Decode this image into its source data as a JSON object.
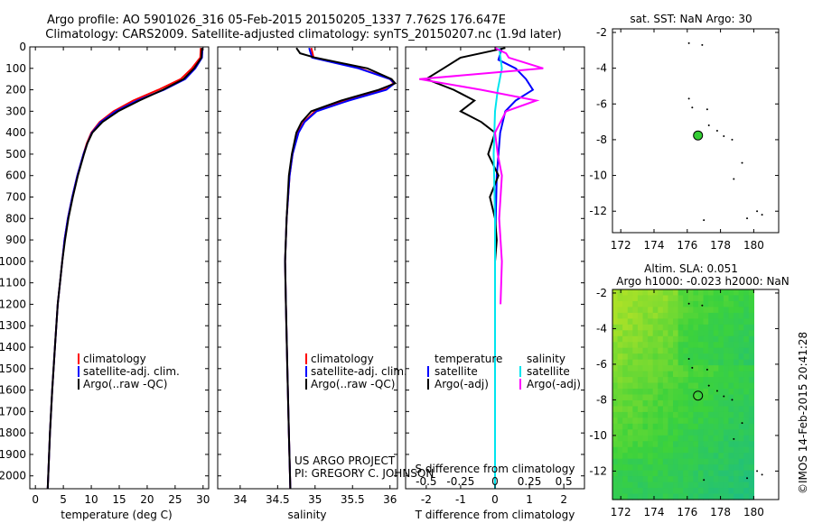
{
  "title": {
    "line1": "Argo profile: AO 5901026_316 05-Feb-2015 20150205_1337 7.762S 176.647E",
    "line2": "Climatology: CARS2009. Satellite-adjusted climatology: synTS_20150207.nc (1.9d later)"
  },
  "credit": "©IMOS 14-Feb-2015 20:41:28",
  "project": {
    "line1": "US ARGO PROJECT",
    "line2": "PI: GREGORY C. JOHNSON"
  },
  "colors": {
    "climatology": "#ff0000",
    "satellite": "#0000ff",
    "argo": "#000000",
    "sal_sat": "#00e5ee",
    "sal_argo": "#ff00ff",
    "float_marker": "#33cc33"
  },
  "chart_data": [
    {
      "type": "line",
      "name": "temperature-profile",
      "xlabel": "temperature (deg C)",
      "xlim": [
        -1,
        31
      ],
      "ylim": [
        2060,
        0
      ],
      "x_ticks": [
        0,
        5,
        10,
        15,
        20,
        25,
        30
      ],
      "y_ticks": [
        0,
        100,
        200,
        300,
        400,
        500,
        600,
        700,
        800,
        900,
        1000,
        1100,
        1200,
        1300,
        1400,
        1500,
        1600,
        1700,
        1800,
        1900,
        2000
      ],
      "legend": [
        "climatology",
        "satellite-adj. clim.",
        "Argo(..raw -QC)"
      ],
      "series": [
        {
          "name": "climatology",
          "depth": [
            5,
            50,
            100,
            150,
            200,
            250,
            300,
            350,
            400,
            450,
            500,
            600,
            700,
            800,
            900,
            1000,
            1100,
            1200,
            1400,
            1600,
            1800,
            2000,
            2060
          ],
          "values": [
            29.6,
            29.5,
            28.0,
            26.0,
            22.0,
            17.5,
            14.0,
            11.5,
            10.0,
            9.2,
            8.6,
            7.5,
            6.6,
            5.8,
            5.2,
            4.8,
            4.4,
            4.0,
            3.5,
            3.0,
            2.6,
            2.3,
            2.2
          ]
        },
        {
          "name": "satellite-adj. clim.",
          "depth": [
            5,
            50,
            100,
            150,
            200,
            250,
            300,
            350,
            400,
            450,
            500,
            600,
            700,
            800,
            900,
            1000,
            1100,
            1200,
            1400,
            1600,
            1800,
            2000,
            2060
          ],
          "values": [
            29.9,
            29.8,
            28.6,
            26.8,
            23.0,
            18.2,
            14.4,
            11.7,
            10.1,
            9.3,
            8.6,
            7.5,
            6.6,
            5.8,
            5.2,
            4.8,
            4.4,
            4.0,
            3.5,
            3.0,
            2.6,
            2.3,
            2.2
          ]
        },
        {
          "name": "Argo(..raw -QC)",
          "depth": [
            5,
            50,
            100,
            150,
            200,
            250,
            300,
            350,
            400,
            450,
            500,
            600,
            700,
            800,
            900,
            1000,
            1100,
            1200,
            1400,
            1600,
            1800,
            2000,
            2060
          ],
          "values": [
            29.8,
            29.7,
            28.4,
            26.5,
            22.8,
            18.6,
            14.8,
            12.0,
            10.2,
            9.3,
            8.7,
            7.6,
            6.7,
            5.9,
            5.3,
            4.8,
            4.4,
            4.0,
            3.5,
            3.0,
            2.6,
            2.3,
            2.2
          ]
        }
      ]
    },
    {
      "type": "line",
      "name": "salinity-profile",
      "xlabel": "salinity",
      "xlim": [
        33.7,
        36.1
      ],
      "ylim": [
        2060,
        0
      ],
      "x_ticks": [
        34,
        34.5,
        35,
        35.5,
        36
      ],
      "legend": [
        "climatology",
        "satellite-adj. clim.",
        "Argo(..raw -QC)"
      ],
      "series": [
        {
          "name": "climatology",
          "depth": [
            5,
            50,
            100,
            150,
            170,
            200,
            250,
            300,
            350,
            400,
            500,
            600,
            800,
            1000,
            1200,
            1500,
            1800,
            2060
          ],
          "values": [
            34.95,
            34.98,
            35.6,
            36.0,
            36.05,
            35.9,
            35.4,
            35.0,
            34.85,
            34.77,
            34.7,
            34.66,
            34.62,
            34.6,
            34.61,
            34.63,
            34.65,
            34.67
          ]
        },
        {
          "name": "satellite-adj. clim.",
          "depth": [
            5,
            50,
            100,
            150,
            170,
            200,
            250,
            300,
            350,
            400,
            500,
            600,
            800,
            1000,
            1200,
            1500,
            1800,
            2060
          ],
          "values": [
            34.92,
            34.96,
            35.58,
            36.0,
            36.06,
            35.95,
            35.45,
            35.02,
            34.86,
            34.78,
            34.7,
            34.66,
            34.62,
            34.6,
            34.61,
            34.63,
            34.65,
            34.67
          ]
        },
        {
          "name": "Argo(..raw -QC)",
          "depth": [
            5,
            30,
            50,
            100,
            150,
            170,
            200,
            250,
            300,
            350,
            400,
            500,
            600,
            800,
            1000,
            1200,
            1500,
            1800,
            2060
          ],
          "values": [
            34.75,
            34.8,
            35.0,
            35.7,
            36.02,
            36.07,
            35.85,
            35.35,
            34.95,
            34.82,
            34.75,
            34.69,
            34.65,
            34.62,
            34.6,
            34.61,
            34.63,
            34.65,
            34.67
          ]
        }
      ]
    },
    {
      "type": "line",
      "name": "difference-profile",
      "xlabel": "T difference from climatology",
      "xlabel_top": "S difference from climatology",
      "xlim": [
        -2.6,
        2.6
      ],
      "ylim": [
        2060,
        0
      ],
      "x_ticks_T": [
        -2,
        -1,
        0,
        1,
        2
      ],
      "x_ticks_S": [
        -0.5,
        -0.25,
        0,
        0.25,
        0.5
      ],
      "legend": {
        "temperature": "temperature",
        "salinity": "salinity",
        "items": [
          "satellite",
          "Argo(-adj)",
          "satellite",
          "Argo(-adj)"
        ]
      },
      "series": [
        {
          "name": "temperature satellite",
          "depth": [
            5,
            60,
            100,
            150,
            200,
            250,
            300,
            400,
            500,
            600,
            800,
            1000,
            1200,
            1400,
            1600,
            1800,
            2000,
            2060
          ],
          "values": [
            0.2,
            0.1,
            0.6,
            0.9,
            1.1,
            0.6,
            0.3,
            0.15,
            0.1,
            0.05,
            0.02,
            0.0,
            0.0,
            0.0,
            0.0,
            0.0,
            0.0,
            0.0
          ]
        },
        {
          "name": "temperature Argo(-adj)",
          "depth": [
            5,
            50,
            100,
            150,
            200,
            250,
            300,
            350,
            400,
            500,
            600,
            700,
            800,
            900,
            1000,
            1200,
            1400,
            1600,
            1800,
            2000,
            2060
          ],
          "values": [
            0.3,
            -1.0,
            -1.5,
            -2.0,
            -1.2,
            -0.6,
            -1.0,
            -0.4,
            0.0,
            -0.2,
            0.1,
            -0.15,
            0.0,
            0.05,
            0.0,
            0.0,
            0.0,
            0.0,
            0.0,
            0.0,
            0.0
          ]
        },
        {
          "name": "salinity satellite",
          "depth": [
            5,
            100,
            200,
            300,
            500,
            800,
            1000,
            1500,
            2000,
            2060
          ],
          "values": [
            0.03,
            0.05,
            0.02,
            0.0,
            -0.01,
            0.0,
            0.0,
            0.0,
            0.0,
            0.0
          ]
        },
        {
          "name": "salinity Argo(-adj)",
          "depth": [
            5,
            30,
            50,
            100,
            150,
            200,
            250,
            300,
            400,
            500,
            600,
            800,
            1000,
            1200
          ],
          "values": [
            0.0,
            0.08,
            0.1,
            0.35,
            -0.55,
            -0.1,
            0.3,
            0.08,
            0.0,
            0.02,
            0.05,
            0.03,
            0.05,
            0.04
          ]
        }
      ]
    },
    {
      "type": "scatter",
      "name": "sst-map",
      "title": "sat. SST: NaN Argo: 30",
      "xlim": [
        171.5,
        181.5
      ],
      "ylim": [
        -13.2,
        -1.8
      ],
      "x_ticks": [
        172,
        174,
        176,
        178,
        180
      ],
      "y_ticks": [
        -2,
        -4,
        -6,
        -8,
        -10,
        -12
      ],
      "float": [
        176.647,
        -7.762
      ],
      "points": [
        [
          176.1,
          -2.6
        ],
        [
          176.9,
          -2.7
        ],
        [
          176.1,
          -5.7
        ],
        [
          176.3,
          -6.2
        ],
        [
          177.2,
          -6.3
        ],
        [
          177.3,
          -7.2
        ],
        [
          177.8,
          -7.5
        ],
        [
          178.2,
          -7.8
        ],
        [
          178.7,
          -8.0
        ],
        [
          179.3,
          -9.3
        ],
        [
          178.8,
          -10.2
        ],
        [
          180.2,
          -12.0
        ],
        [
          180.5,
          -12.2
        ],
        [
          179.6,
          -12.4
        ],
        [
          177.0,
          -12.5
        ]
      ]
    },
    {
      "type": "heatmap",
      "name": "sla-map",
      "title_line1": "Altim. SLA: 0.051",
      "title_line2": "Argo h1000: -0.023 h2000: NaN",
      "xlim": [
        171.5,
        181.5
      ],
      "ylim": [
        -13.6,
        -1.8
      ],
      "x_ticks": [
        172,
        174,
        176,
        178,
        180
      ],
      "y_ticks": [
        -2,
        -4,
        -6,
        -8,
        -10,
        -12
      ],
      "float": [
        176.647,
        -7.762
      ],
      "data_lon_max": 180.0
    }
  ]
}
